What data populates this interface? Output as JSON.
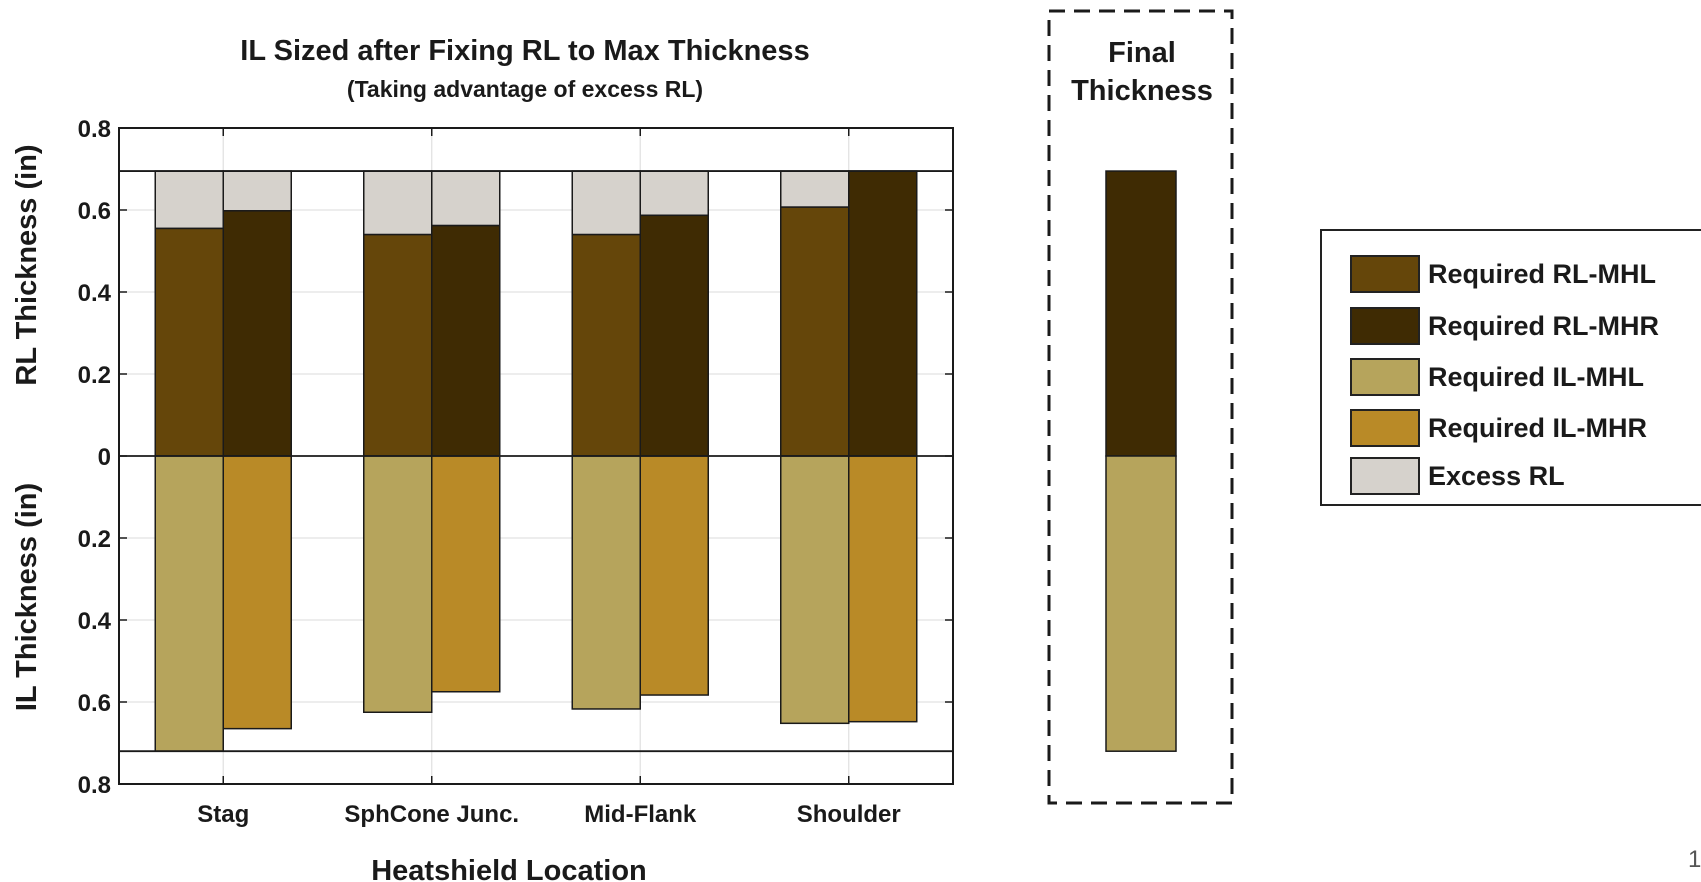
{
  "colors": {
    "required_rl_mhl": "#65460a",
    "required_rl_mhr": "#3f2b03",
    "required_il_mhl": "#b6a45c",
    "required_il_mhr": "#b98a27",
    "excess_rl": "#d6d2cc",
    "grid": "#e2e2e2",
    "axis": "#1a1a1a"
  },
  "chart_data": {
    "type": "bar",
    "title": "IL Sized after Fixing RL to Max Thickness",
    "subtitle": "(Taking advantage of excess RL)",
    "xlabel": "Heatshield Location",
    "ylabel_top": "RL Thickness (in)",
    "ylabel_bottom": "IL Thickness (in)",
    "categories": [
      "Stag",
      "SphCone Junc.",
      "Mid-Flank",
      "Shoulder"
    ],
    "yticks": [
      "0.8",
      "0.6",
      "0.4",
      "0.2",
      "0",
      "0.2",
      "0.4",
      "0.6",
      "0.8"
    ],
    "ylim_rl": [
      0,
      0.8
    ],
    "ylim_il": [
      0,
      0.8
    ],
    "rl_max": 0.695,
    "il_max": 0.72,
    "grid": true,
    "series": [
      {
        "name": "Required RL-MHL",
        "side": "rl",
        "values": [
          0.555,
          0.54,
          0.54,
          0.607
        ]
      },
      {
        "name": "Required RL-MHR",
        "side": "rl",
        "values": [
          0.598,
          0.562,
          0.587,
          0.695
        ]
      },
      {
        "name": "Required IL-MHL",
        "side": "il",
        "values": [
          0.72,
          0.625,
          0.617,
          0.652
        ]
      },
      {
        "name": "Required IL-MHR",
        "side": "il",
        "values": [
          0.665,
          0.575,
          0.583,
          0.648
        ]
      },
      {
        "name": "Excess RL",
        "side": "rl",
        "values": [
          0.14,
          0.155,
          0.155,
          0.088
        ]
      }
    ],
    "final_thickness": {
      "title_line1": "Final",
      "title_line2": "Thickness",
      "rl": 0.695,
      "il": 0.72
    },
    "legend_placement": "right",
    "legend": [
      {
        "label": "Required RL-MHL",
        "color_key": "required_rl_mhl"
      },
      {
        "label": "Required RL-MHR",
        "color_key": "required_rl_mhr"
      },
      {
        "label": "Required IL-MHL",
        "color_key": "required_il_mhl"
      },
      {
        "label": "Required IL-MHR",
        "color_key": "required_il_mhr"
      },
      {
        "label": "Excess RL",
        "color_key": "excess_rl"
      }
    ]
  },
  "page_number": "1"
}
